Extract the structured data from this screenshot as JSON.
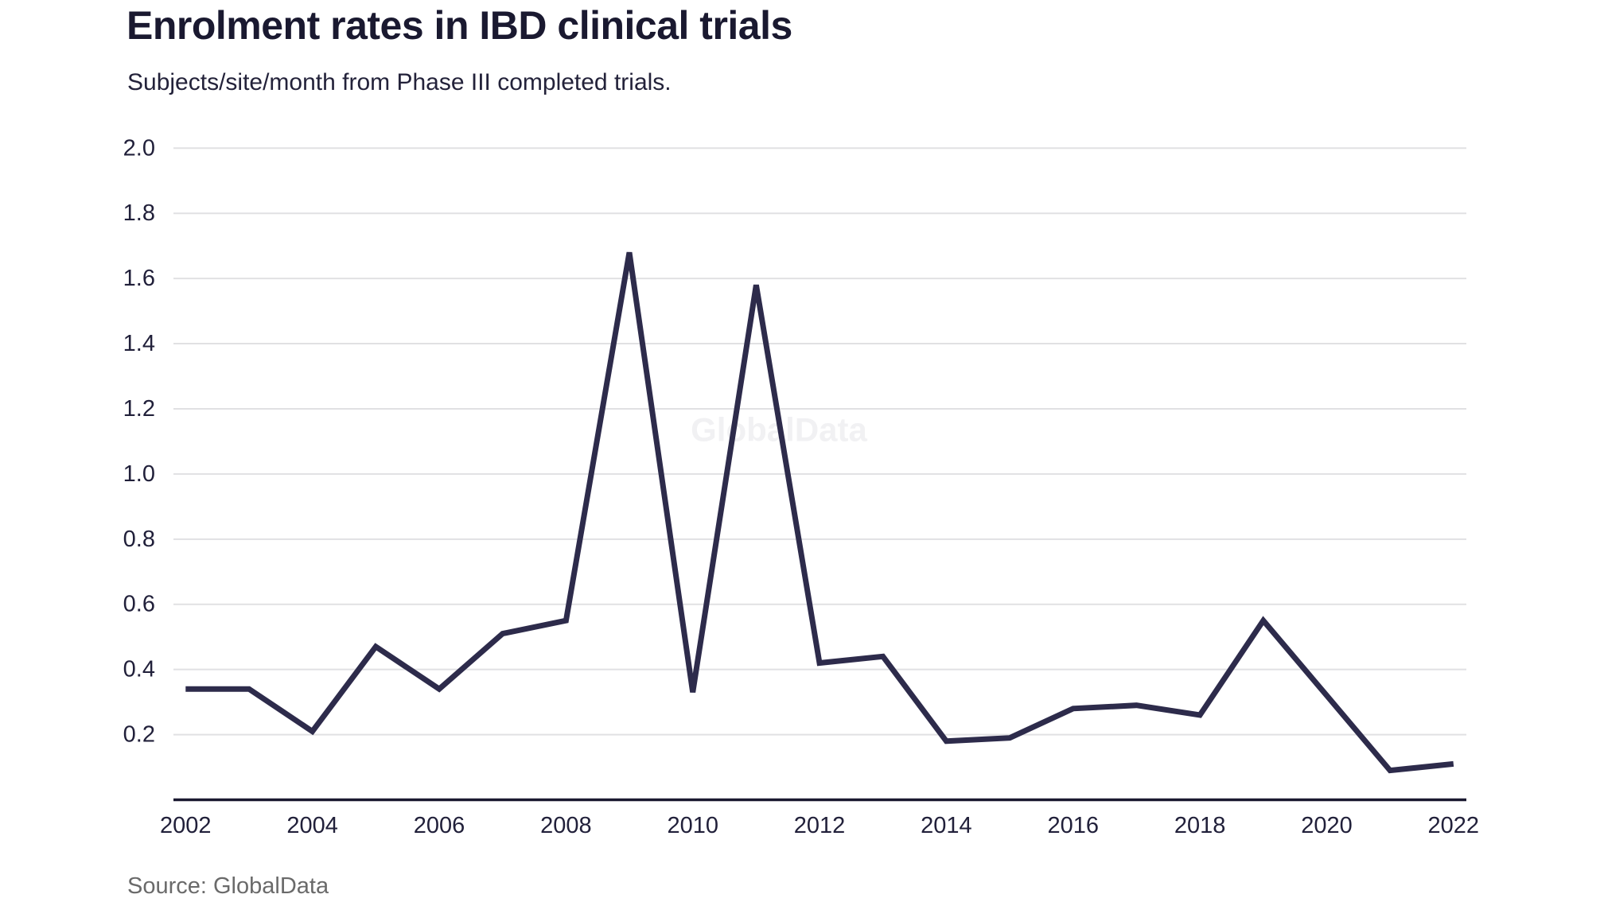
{
  "header": {
    "title": "Enrolment rates in IBD clinical trials",
    "subtitle": "Subjects/site/month from Phase III completed trials."
  },
  "footer": {
    "source": "Source: GlobalData"
  },
  "watermark_text": "GlobalData",
  "colors": {
    "background": "#ffffff",
    "title": "#1a1930",
    "subtitle": "#23223a",
    "line": "#2d2b4b",
    "axis_text": "#21203a",
    "axis_line": "#1a1930",
    "gridline": "#e1e1e3",
    "watermark": "#f1f1f3",
    "source_text": "#6a6a6a"
  },
  "chart_data": {
    "type": "line",
    "title": "Enrolment rates in IBD clinical trials",
    "subtitle": "Subjects/site/month from Phase III completed trials.",
    "source": "Source: GlobalData",
    "watermark": "GlobalData",
    "x": [
      2002,
      2003,
      2004,
      2005,
      2006,
      2007,
      2008,
      2009,
      2010,
      2011,
      2012,
      2013,
      2014,
      2015,
      2016,
      2017,
      2018,
      2019,
      2020,
      2021,
      2022
    ],
    "values": [
      0.34,
      0.34,
      0.21,
      0.47,
      0.34,
      0.51,
      0.55,
      1.68,
      0.33,
      1.58,
      0.42,
      0.44,
      0.18,
      0.19,
      0.28,
      0.29,
      0.26,
      0.55,
      0.32,
      0.09,
      0.11
    ],
    "series_name": "Subjects/site/month",
    "xlabel": "",
    "ylabel": "",
    "x_tick_labels": [
      "2002",
      "2004",
      "2006",
      "2008",
      "2010",
      "2012",
      "2014",
      "2016",
      "2018",
      "2020",
      "2022"
    ],
    "y_ticks": [
      0.2,
      0.4,
      0.6,
      0.8,
      1.0,
      1.2,
      1.4,
      1.6,
      1.8,
      2.0
    ],
    "ylim": [
      0,
      2.0
    ],
    "grid": "horizontal",
    "legend": "none"
  }
}
